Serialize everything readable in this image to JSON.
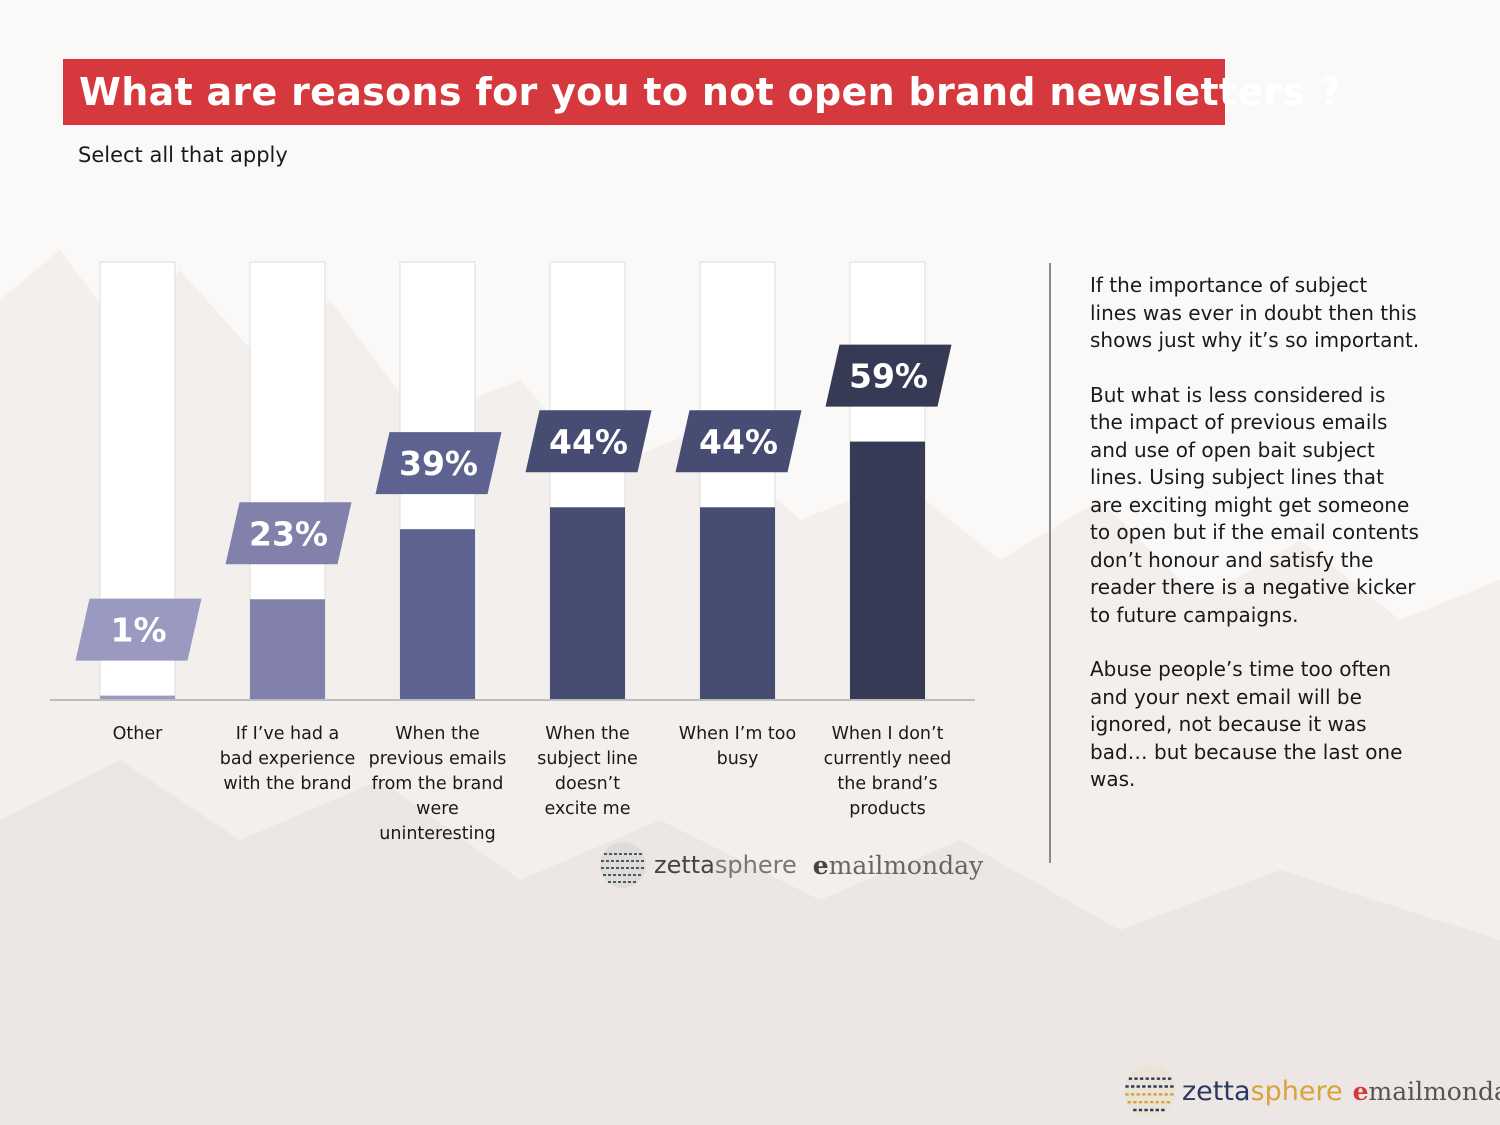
{
  "title": "What are reasons for you to not open brand newsletters ?",
  "subtitle": "Select all that apply",
  "colors": {
    "title_bg": "#d6393d",
    "bar_colors": [
      "#9a9ac0",
      "#8181ab",
      "#5d6290",
      "#474d72",
      "#474d72",
      "#363a54"
    ]
  },
  "chart_data": {
    "type": "bar",
    "categories": [
      "Other",
      "If I've had a bad experience with the brand",
      "When the previous emails from the brand were uninteresting",
      "When the subject line doesn't excite me",
      "When I'm too busy",
      "When I don't currently need the brand's products"
    ],
    "category_lines": [
      [
        "Other"
      ],
      [
        "If I’ve had a",
        "bad experience",
        "with the brand"
      ],
      [
        "When the",
        "previous emails",
        "from the brand",
        "were",
        "uninteresting"
      ],
      [
        "When the",
        "subject line",
        "doesn’t",
        "excite me"
      ],
      [
        "When I’m too",
        "busy"
      ],
      [
        "When I don’t",
        "currently need",
        "the brand’s",
        "products"
      ]
    ],
    "values": [
      1,
      23,
      39,
      44,
      44,
      59
    ],
    "data_labels": [
      "1%",
      "23%",
      "39%",
      "44%",
      "44%",
      "59%"
    ],
    "ylim": [
      0,
      100
    ],
    "xlabel": "",
    "ylabel": "",
    "grid": false
  },
  "commentary": {
    "p1": "If the importance of subject lines was ever in doubt then this shows just why it’s so important.",
    "p2": "But what is less considered is the impact of previous emails and use of open bait subject lines. Using subject lines that are exciting might get someone to open but if the email contents don’t honour and satisfy the reader there is a negative kicker to future campaigns.",
    "p3": "Abuse people’s time too often and your next email will be ignored, not because it was bad… but because the last one was."
  },
  "logos": {
    "zetta_part1": "zetta",
    "zetta_part2": "sphere",
    "email_part1": "e",
    "email_part2": "mailmonday"
  }
}
